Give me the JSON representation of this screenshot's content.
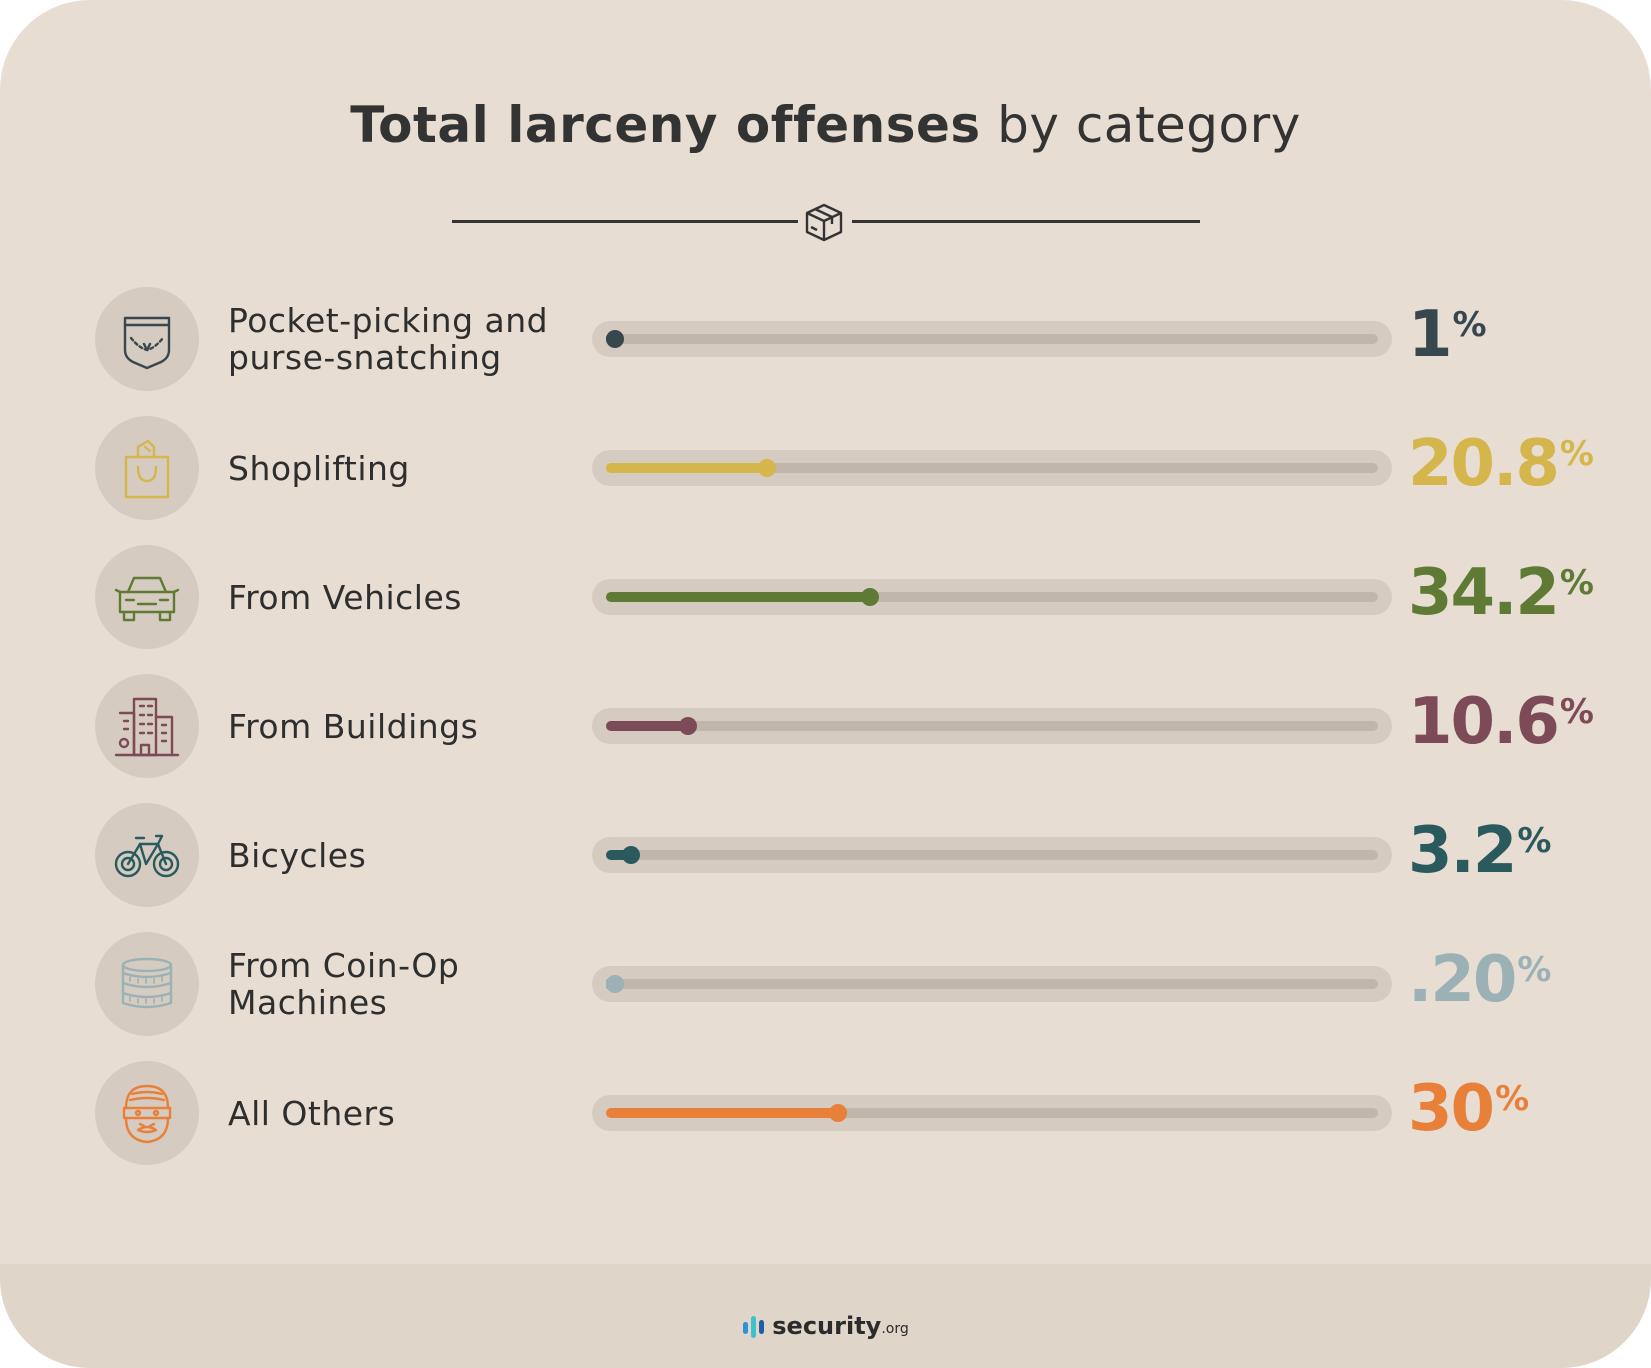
{
  "header": {
    "title_strong": "Total larceny offenses",
    "title_light": "by category",
    "divider_icon": "package-box-icon"
  },
  "colors": {
    "background": "#e8ddd2",
    "text": "#333333",
    "track": "#c0b6ac"
  },
  "chart_data": {
    "type": "bar",
    "title": "Total larceny offenses by category",
    "value_unit": "%",
    "xlim": [
      0,
      100
    ],
    "categories": [
      "Pocket-picking and purse-snatching",
      "Shoplifting",
      "From Vehicles",
      "From Buildings",
      "Bicycles",
      "From Coin-Op Machines",
      "All Others"
    ],
    "values": [
      1,
      20.8,
      34.2,
      10.6,
      3.2,
      0.2,
      30
    ],
    "rows": [
      {
        "label": "Pocket-picking and\npurse-snatching",
        "value": 1,
        "display": "1",
        "color": "#37474d",
        "icon": "pocket-icon"
      },
      {
        "label": "Shoplifting",
        "value": 20.8,
        "display": "20.8",
        "color": "#d4b64c",
        "icon": "shopping-bag-icon"
      },
      {
        "label": "From Vehicles",
        "value": 34.2,
        "display": "34.2",
        "color": "#5f7a35",
        "icon": "car-icon"
      },
      {
        "label": "From Buildings",
        "value": 10.6,
        "display": "10.6",
        "color": "#7d4a58",
        "icon": "buildings-icon"
      },
      {
        "label": "Bicycles",
        "value": 3.2,
        "display": "3.2",
        "color": "#2b5a5e",
        "icon": "bicycle-icon"
      },
      {
        "label": "From Coin-Op\nMachines",
        "value": 0.2,
        "display": ".20",
        "color": "#9bb1b5",
        "icon": "coins-icon"
      },
      {
        "label": "All Others",
        "value": 30,
        "display": "30",
        "color": "#e9803a",
        "icon": "robber-icon"
      }
    ],
    "percent_sign": "%"
  },
  "footer": {
    "brand": "security",
    "brand_suffix": ".org",
    "brand_colors": [
      "#2f8fd8",
      "#3fc1c9",
      "#1f5fa8"
    ]
  }
}
